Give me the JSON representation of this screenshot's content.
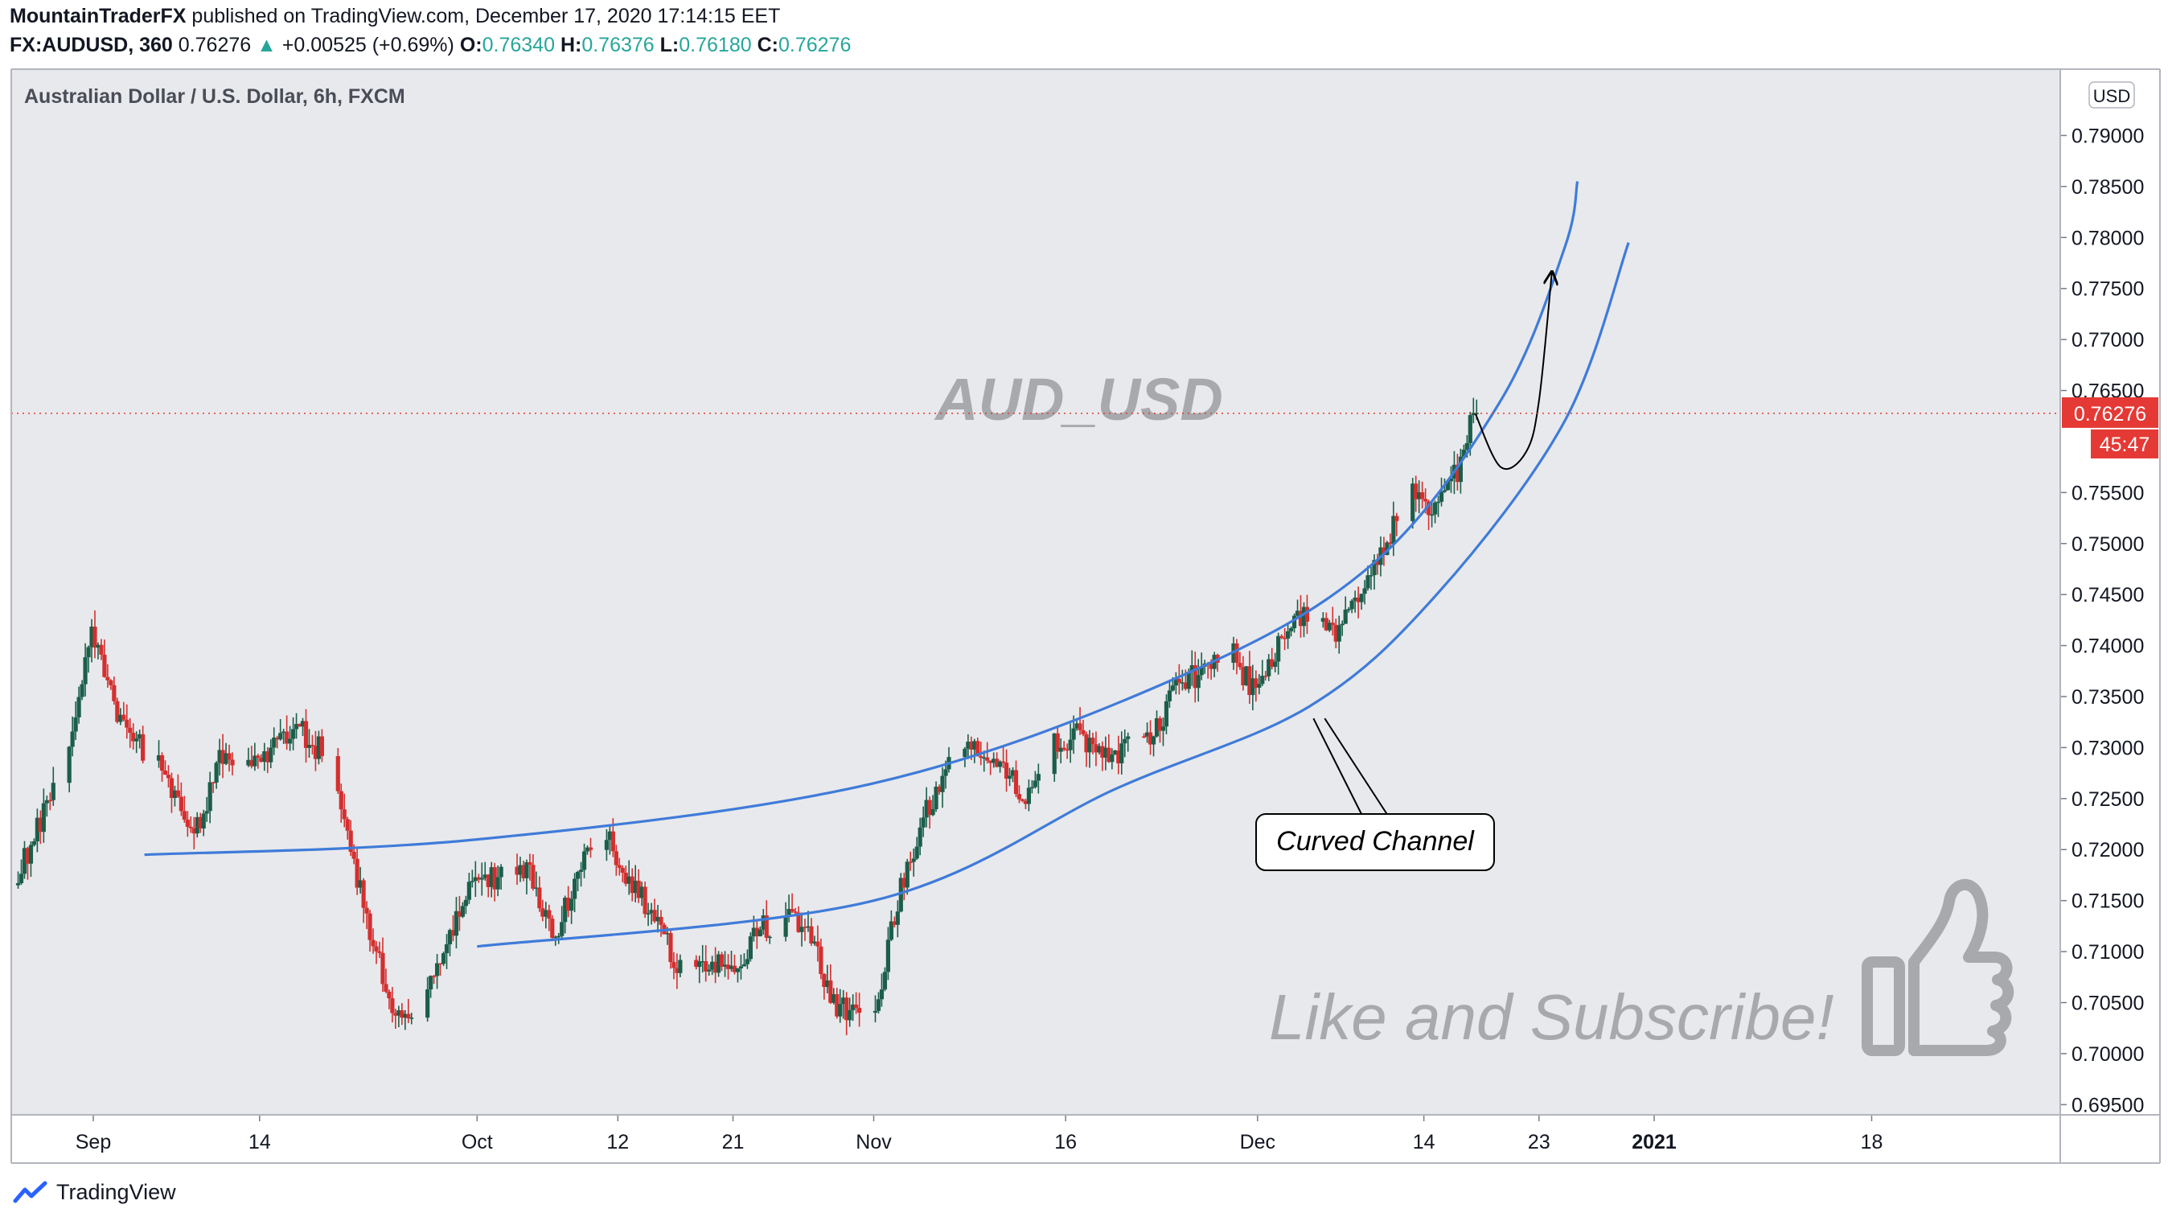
{
  "header": {
    "author": "MountainTraderFX",
    "published_text": "published on TradingView.com, December 17, 2020 17:14:15 EET",
    "symbol": "FX:AUDUSD, 360",
    "last": "0.76276",
    "change_arrow": "▲",
    "change": "+0.00525 (+0.69%)",
    "o_label": "O:",
    "o_value": "0.76340",
    "h_label": "H:",
    "h_value": "0.76376",
    "l_label": "L:",
    "l_value": "0.76180",
    "c_label": "C:",
    "c_value": "0.76276"
  },
  "footer": {
    "brand": "TradingView"
  },
  "colors": {
    "background": "#e8e9ec",
    "bull": "#1b5e4a",
    "bear": "#d32f2f",
    "channel": "#3f7bd9",
    "annotation_text": "#a7a9ad",
    "price_label": "#e53935",
    "header_up": "#26a69a"
  },
  "chart_data": {
    "type": "candlestick",
    "title": "Australian Dollar / U.S. Dollar, 6h, FXCM",
    "currency_label": "USD",
    "watermark_text": "AUD_USD",
    "annotation_label": "Curved Channel",
    "cta_text": "Like and Subscribe!",
    "cta_icon": "thumbs-up-icon",
    "last_price_label": "0.76276",
    "countdown_label": "45:47",
    "y_ticks": [
      "0.79000",
      "0.78500",
      "0.78000",
      "0.77500",
      "0.77000",
      "0.76500",
      "0.75500",
      "0.75000",
      "0.74500",
      "0.74000",
      "0.73500",
      "0.73000",
      "0.72500",
      "0.72000",
      "0.71500",
      "0.71000",
      "0.70500",
      "0.70000",
      "0.69500"
    ],
    "ylim": [
      0.694,
      0.7965
    ],
    "x_ticks": [
      {
        "label": "Sep",
        "date": "2020-09-01"
      },
      {
        "label": "14",
        "date": "2020-09-14"
      },
      {
        "label": "Oct",
        "date": "2020-10-01"
      },
      {
        "label": "12",
        "date": "2020-10-12"
      },
      {
        "label": "21",
        "date": "2020-10-21"
      },
      {
        "label": "Nov",
        "date": "2020-11-01"
      },
      {
        "label": "16",
        "date": "2020-11-16"
      },
      {
        "label": "Dec",
        "date": "2020-12-01"
      },
      {
        "label": "14",
        "date": "2020-12-14"
      },
      {
        "label": "23",
        "date": "2020-12-23"
      },
      {
        "label": "2021",
        "date": "2021-01-01"
      },
      {
        "label": "18",
        "date": "2021-01-18"
      }
    ],
    "price_path": [
      [
        "2020-08-26",
        0.7165
      ],
      [
        "2020-08-28",
        0.723
      ],
      [
        "2020-08-30",
        0.728
      ],
      [
        "2020-09-01",
        0.741
      ],
      [
        "2020-09-03",
        0.733
      ],
      [
        "2020-09-05",
        0.73
      ],
      [
        "2020-09-07",
        0.727
      ],
      [
        "2020-09-09",
        0.721
      ],
      [
        "2020-09-11",
        0.7285
      ],
      [
        "2020-09-13",
        0.7275
      ],
      [
        "2020-09-15",
        0.73
      ],
      [
        "2020-09-17",
        0.732
      ],
      [
        "2020-09-19",
        0.7295
      ],
      [
        "2020-09-21",
        0.7215
      ],
      [
        "2020-09-23",
        0.711
      ],
      [
        "2020-09-25",
        0.703
      ],
      [
        "2020-09-27",
        0.706
      ],
      [
        "2020-09-29",
        0.712
      ],
      [
        "2020-10-01",
        0.717
      ],
      [
        "2020-10-03",
        0.7175
      ],
      [
        "2020-10-05",
        0.7185
      ],
      [
        "2020-10-07",
        0.711
      ],
      [
        "2020-10-09",
        0.7175
      ],
      [
        "2020-10-11",
        0.722
      ],
      [
        "2020-10-13",
        0.717
      ],
      [
        "2020-10-15",
        0.7135
      ],
      [
        "2020-10-17",
        0.708
      ],
      [
        "2020-10-19",
        0.709
      ],
      [
        "2020-10-21",
        0.708
      ],
      [
        "2020-10-23",
        0.712
      ],
      [
        "2020-10-25",
        0.7135
      ],
      [
        "2020-10-27",
        0.7125
      ],
      [
        "2020-10-29",
        0.705
      ],
      [
        "2020-11-01",
        0.703
      ],
      [
        "2020-11-03",
        0.715
      ],
      [
        "2020-11-05",
        0.723
      ],
      [
        "2020-11-07",
        0.728
      ],
      [
        "2020-11-09",
        0.73
      ],
      [
        "2020-11-11",
        0.728
      ],
      [
        "2020-11-13",
        0.725
      ],
      [
        "2020-11-15",
        0.73
      ],
      [
        "2020-11-17",
        0.7315
      ],
      [
        "2020-11-19",
        0.729
      ],
      [
        "2020-11-21",
        0.73
      ],
      [
        "2020-11-23",
        0.731
      ],
      [
        "2020-11-25",
        0.7365
      ],
      [
        "2020-11-27",
        0.7375
      ],
      [
        "2020-11-29",
        0.7395
      ],
      [
        "2020-12-01",
        0.735
      ],
      [
        "2020-12-03",
        0.741
      ],
      [
        "2020-12-05",
        0.743
      ],
      [
        "2020-12-07",
        0.741
      ],
      [
        "2020-12-09",
        0.744
      ],
      [
        "2020-12-11",
        0.75
      ],
      [
        "2020-12-13",
        0.755
      ],
      [
        "2020-12-15",
        0.7535
      ],
      [
        "2020-12-17",
        0.7575
      ],
      [
        "2020-12-18",
        0.7628
      ]
    ],
    "channel_upper": [
      [
        "2020-09-05",
        0.7195
      ],
      [
        "2020-10-01",
        0.721
      ],
      [
        "2020-11-01",
        0.7265
      ],
      [
        "2020-11-25",
        0.737
      ],
      [
        "2020-12-10",
        0.748
      ],
      [
        "2020-12-20",
        0.764
      ],
      [
        "2020-12-25",
        0.779
      ],
      [
        "2020-12-26",
        0.7855
      ]
    ],
    "channel_lower": [
      [
        "2020-10-01",
        0.7105
      ],
      [
        "2020-11-01",
        0.715
      ],
      [
        "2020-11-20",
        0.726
      ],
      [
        "2020-12-05",
        0.734
      ],
      [
        "2020-12-15",
        0.745
      ],
      [
        "2020-12-25",
        0.762
      ],
      [
        "2020-12-30",
        0.7795
      ]
    ],
    "projection": [
      [
        "2020-12-18",
        0.7628
      ],
      [
        "2020-12-20",
        0.7575
      ],
      [
        "2020-12-22",
        0.759
      ],
      [
        "2020-12-23",
        0.764
      ],
      [
        "2020-12-24",
        0.7765
      ]
    ]
  }
}
